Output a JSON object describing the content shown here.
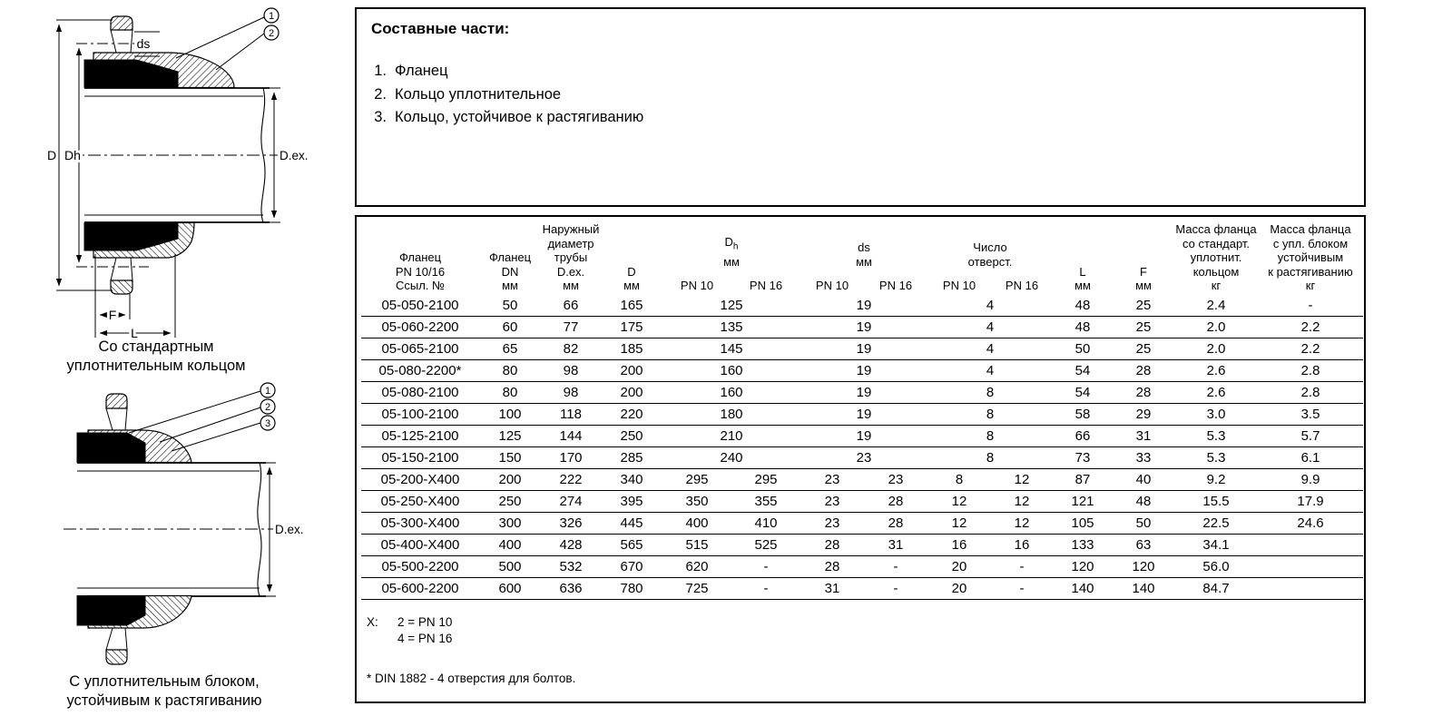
{
  "drawing_top": {
    "caption_line1": "Со стандартным",
    "caption_line2": "уплотнительным кольцом",
    "labels": {
      "d": "D",
      "dh": "Dh",
      "ds": "ds",
      "dex": "D.ex.",
      "f": "F",
      "l": "L"
    },
    "callouts": [
      "1",
      "2"
    ]
  },
  "drawing_bottom": {
    "caption_line1": "С уплотнительным блоком,",
    "caption_line2": "устойчивым к растягиванию",
    "labels": {
      "dex": "D.ex."
    },
    "callouts": [
      "1",
      "2",
      "3"
    ]
  },
  "parts": {
    "title": "Составные части:",
    "items": [
      {
        "num": "1.",
        "label": "Фланец"
      },
      {
        "num": "2.",
        "label": "Кольцо уплотнительное"
      },
      {
        "num": "3.",
        "label": "Кольцо, устойчивое к растягиванию"
      }
    ]
  },
  "table": {
    "header": {
      "col_ref": [
        "Фланец",
        "PN 10/16",
        "Ссыл. №"
      ],
      "col_dn": [
        "Фланец",
        "DN",
        "мм"
      ],
      "col_dex": [
        "Наружный",
        "диаметр",
        "трубы",
        "D.ex.",
        "мм"
      ],
      "col_d": [
        "D",
        "мм"
      ],
      "grp_dh": {
        "main": "D",
        "sub": "h",
        "unit": "мм"
      },
      "grp_ds": {
        "main": "ds",
        "unit": "мм"
      },
      "grp_holes": [
        "Число",
        "отверст."
      ],
      "col_l": [
        "L",
        "мм"
      ],
      "col_f": [
        "F",
        "мм"
      ],
      "col_m1": [
        "Масса фланца",
        "со стандарт.",
        "уплотнит.",
        "кольцом",
        "кг"
      ],
      "col_m2": [
        "Масса фланца",
        "с упл. блоком",
        "устойчивым",
        "к растягиванию",
        "кг"
      ],
      "pn10": "PN 10",
      "pn16": "PN 16"
    },
    "rows": [
      {
        "ref": "05-050-2100",
        "dn": "50",
        "dex": "66",
        "d": "165",
        "merged": true,
        "dh": [
          "125"
        ],
        "ds": [
          "19"
        ],
        "holes": [
          "4"
        ],
        "l": "48",
        "f": "25",
        "m1": "2.4",
        "m2": "-"
      },
      {
        "ref": "05-060-2200",
        "dn": "60",
        "dex": "77",
        "d": "175",
        "merged": true,
        "dh": [
          "135"
        ],
        "ds": [
          "19"
        ],
        "holes": [
          "4"
        ],
        "l": "48",
        "f": "25",
        "m1": "2.0",
        "m2": "2.2"
      },
      {
        "ref": "05-065-2100",
        "dn": "65",
        "dex": "82",
        "d": "185",
        "merged": true,
        "dh": [
          "145"
        ],
        "ds": [
          "19"
        ],
        "holes": [
          "4"
        ],
        "l": "50",
        "f": "25",
        "m1": "2.0",
        "m2": "2.2"
      },
      {
        "ref": "05-080-2200*",
        "dn": "80",
        "dex": "98",
        "d": "200",
        "merged": true,
        "dh": [
          "160"
        ],
        "ds": [
          "19"
        ],
        "holes": [
          "4"
        ],
        "l": "54",
        "f": "28",
        "m1": "2.6",
        "m2": "2.8"
      },
      {
        "ref": "05-080-2100",
        "dn": "80",
        "dex": "98",
        "d": "200",
        "merged": true,
        "dh": [
          "160"
        ],
        "ds": [
          "19"
        ],
        "holes": [
          "8"
        ],
        "l": "54",
        "f": "28",
        "m1": "2.6",
        "m2": "2.8"
      },
      {
        "ref": "05-100-2100",
        "dn": "100",
        "dex": "118",
        "d": "220",
        "merged": true,
        "dh": [
          "180"
        ],
        "ds": [
          "19"
        ],
        "holes": [
          "8"
        ],
        "l": "58",
        "f": "29",
        "m1": "3.0",
        "m2": "3.5"
      },
      {
        "ref": "05-125-2100",
        "dn": "125",
        "dex": "144",
        "d": "250",
        "merged": true,
        "dh": [
          "210"
        ],
        "ds": [
          "19"
        ],
        "holes": [
          "8"
        ],
        "l": "66",
        "f": "31",
        "m1": "5.3",
        "m2": "5.7"
      },
      {
        "ref": "05-150-2100",
        "dn": "150",
        "dex": "170",
        "d": "285",
        "merged": true,
        "dh": [
          "240"
        ],
        "ds": [
          "23"
        ],
        "holes": [
          "8"
        ],
        "l": "73",
        "f": "33",
        "m1": "5.3",
        "m2": "6.1"
      },
      {
        "ref": "05-200-X400",
        "dn": "200",
        "dex": "222",
        "d": "340",
        "merged": false,
        "dh": [
          "295",
          "295"
        ],
        "ds": [
          "23",
          "23"
        ],
        "holes": [
          "8",
          "12"
        ],
        "l": "87",
        "f": "40",
        "m1": "9.2",
        "m2": "9.9"
      },
      {
        "ref": "05-250-X400",
        "dn": "250",
        "dex": "274",
        "d": "395",
        "merged": false,
        "dh": [
          "350",
          "355"
        ],
        "ds": [
          "23",
          "28"
        ],
        "holes": [
          "12",
          "12"
        ],
        "l": "121",
        "f": "48",
        "m1": "15.5",
        "m2": "17.9"
      },
      {
        "ref": "05-300-X400",
        "dn": "300",
        "dex": "326",
        "d": "445",
        "merged": false,
        "dh": [
          "400",
          "410"
        ],
        "ds": [
          "23",
          "28"
        ],
        "holes": [
          "12",
          "12"
        ],
        "l": "105",
        "f": "50",
        "m1": "22.5",
        "m2": "24.6"
      },
      {
        "ref": "05-400-X400",
        "dn": "400",
        "dex": "428",
        "d": "565",
        "merged": false,
        "dh": [
          "515",
          "525"
        ],
        "ds": [
          "28",
          "31"
        ],
        "holes": [
          "16",
          "16"
        ],
        "l": "133",
        "f": "63",
        "m1": "34.1",
        "m2": ""
      },
      {
        "ref": "05-500-2200",
        "dn": "500",
        "dex": "532",
        "d": "670",
        "merged": false,
        "dh": [
          "620",
          "-"
        ],
        "ds": [
          "28",
          "-"
        ],
        "holes": [
          "20",
          "-"
        ],
        "l": "120",
        "f": "120",
        "m1": "56.0",
        "m2": ""
      },
      {
        "ref": "05-600-2200",
        "dn": "600",
        "dex": "636",
        "d": "780",
        "merged": false,
        "dh": [
          "725",
          "-"
        ],
        "ds": [
          "31",
          "-"
        ],
        "holes": [
          "20",
          "-"
        ],
        "l": "140",
        "f": "140",
        "m1": "84.7",
        "m2": ""
      }
    ],
    "footnotes": {
      "x_label": "X:",
      "x_lines": [
        "2 = PN 10",
        "4 = PN 16"
      ],
      "din": "* DIN 1882 - 4 отверстия для болтов."
    }
  },
  "colors": {
    "ink": "#000000",
    "paper": "#ffffff"
  }
}
